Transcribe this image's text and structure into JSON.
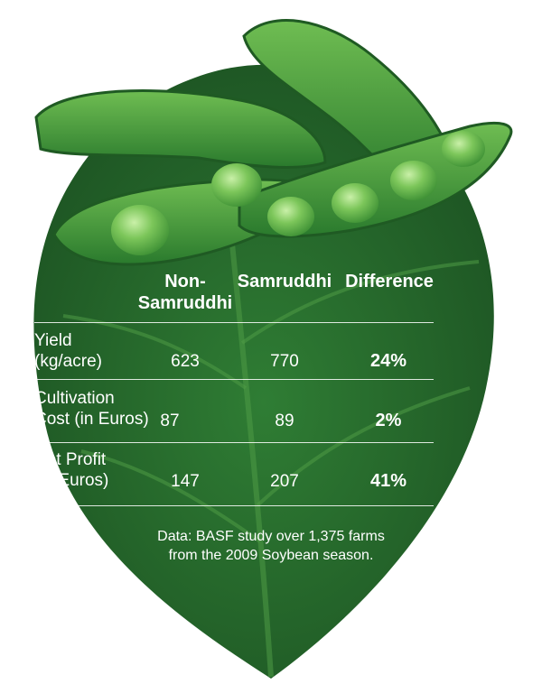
{
  "colors": {
    "leaf_dark": "#1f5a26",
    "leaf_mid": "#2e7a33",
    "leaf_light": "#4c9a3e",
    "pod_light": "#62b04a",
    "pod_dark": "#2b7a2e",
    "bean": "#8fd06a",
    "text": "#ffffff"
  },
  "icons": [
    "leaf-illustration",
    "soybean-pods-illustration"
  ],
  "chart_data": {
    "type": "table",
    "columns": [
      {
        "lines": [
          "Non-",
          "Samruddhi"
        ]
      },
      {
        "lines": [
          "Samruddhi"
        ]
      },
      {
        "lines": [
          "Difference"
        ]
      }
    ],
    "rows": [
      {
        "label_lines": [
          "Yield",
          "(kg/acre)"
        ],
        "values": [
          "623",
          "770",
          "24%"
        ]
      },
      {
        "label_lines": [
          "Cultivation",
          "Cost (in Euros)"
        ],
        "values": [
          "87",
          "89",
          "2%"
        ]
      },
      {
        "label_lines": [
          "Net Profit",
          "(in Euros)"
        ],
        "values": [
          "147",
          "207",
          "41%"
        ]
      }
    ],
    "source_lines": [
      "Data: BASF study over 1,375 farms",
      "from the 2009 Soybean season."
    ]
  }
}
